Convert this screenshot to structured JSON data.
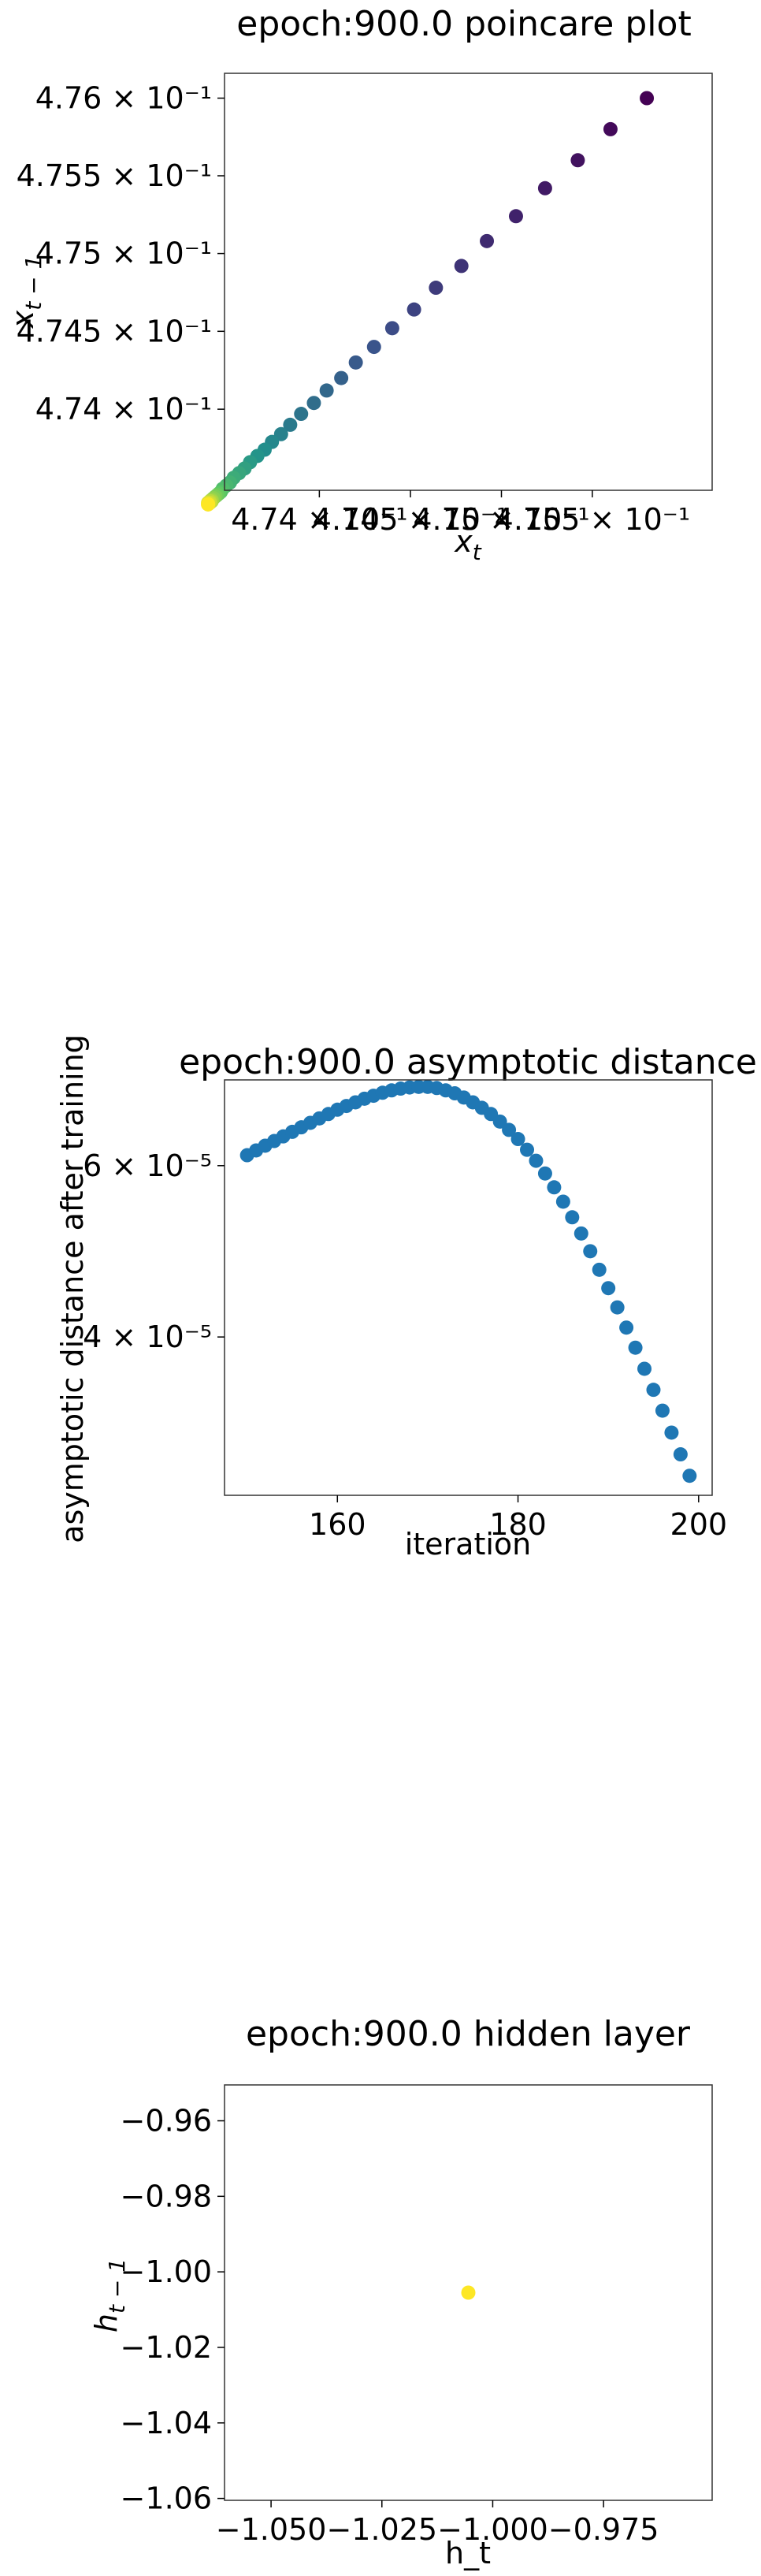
{
  "chart_data": [
    {
      "type": "scatter",
      "title": "epoch:900.0 poincare plot",
      "xlabel": "x",
      "xlabel_sub": "t",
      "ylabel": "x",
      "ylabel_sub": "t − 1",
      "xscale": "log",
      "yscale": "log",
      "xlim": [
        0.47348,
        0.47616
      ],
      "ylim": [
        0.47348,
        0.47616
      ],
      "xticks": [
        {
          "value": 0.474,
          "label": "4.74 × 10⁻¹"
        },
        {
          "value": 0.4745,
          "label": "4.745 × 10⁻¹"
        },
        {
          "value": 0.475,
          "label": "4.75 × 10⁻¹"
        },
        {
          "value": 0.4755,
          "label": "4.755 × 10⁻¹"
        }
      ],
      "yticks": [
        {
          "value": 0.474,
          "label": "4.74 × 10⁻¹"
        },
        {
          "value": 0.4745,
          "label": "4.745 × 10⁻¹"
        },
        {
          "value": 0.475,
          "label": "4.75 × 10⁻¹"
        },
        {
          "value": 0.4755,
          "label": "4.755 × 10⁻¹"
        },
        {
          "value": 0.476,
          "label": "4.76 × 10⁻¹"
        }
      ],
      "colormap": "viridis",
      "x": [
        0.4758,
        0.4756,
        0.47542,
        0.47524,
        0.47508,
        0.47492,
        0.47478,
        0.47464,
        0.47452,
        0.4744,
        0.4743,
        0.4742,
        0.47412,
        0.47404,
        0.47397,
        0.4739,
        0.47384,
        0.47379,
        0.47374,
        0.4737,
        0.47366,
        0.47362,
        0.47359,
        0.47356,
        0.47353,
        0.47351,
        0.47349,
        0.47347,
        0.47346,
        0.47345,
        0.47344,
        0.47343,
        0.47342,
        0.47341,
        0.47341,
        0.4734,
        0.4734,
        0.47339,
        0.47339,
        0.47339
      ],
      "y": [
        0.476,
        0.4758,
        0.4756,
        0.47542,
        0.47524,
        0.47508,
        0.47492,
        0.47478,
        0.47464,
        0.47452,
        0.4744,
        0.4743,
        0.4742,
        0.47412,
        0.47404,
        0.47397,
        0.4739,
        0.47384,
        0.47379,
        0.47374,
        0.4737,
        0.47366,
        0.47362,
        0.47359,
        0.47356,
        0.47353,
        0.47351,
        0.47349,
        0.47347,
        0.47346,
        0.47345,
        0.47344,
        0.47343,
        0.47342,
        0.47341,
        0.47341,
        0.4734,
        0.4734,
        0.47339,
        0.47339
      ]
    },
    {
      "type": "scatter",
      "title": "epoch:900.0 asymptotic distance",
      "xlabel": "iteration",
      "ylabel": "asymptotic distance after training",
      "yscale": "log",
      "xlim": [
        147.5,
        201.5
      ],
      "ylim": [
        2.75e-05,
        7.35e-05
      ],
      "color": "#1f77b4",
      "xticks": [
        {
          "value": 160,
          "label": "160"
        },
        {
          "value": 180,
          "label": "180"
        },
        {
          "value": 200,
          "label": "200"
        }
      ],
      "yticks": [
        {
          "value": 4e-05,
          "label": "4 × 10⁻⁵"
        },
        {
          "value": 6e-05,
          "label": "6 × 10⁻⁵"
        }
      ],
      "x": [
        150,
        151,
        152,
        153,
        154,
        155,
        156,
        157,
        158,
        159,
        160,
        161,
        162,
        163,
        164,
        165,
        166,
        167,
        168,
        169,
        170,
        171,
        172,
        173,
        174,
        175,
        176,
        177,
        178,
        179,
        180,
        181,
        182,
        183,
        184,
        185,
        186,
        187,
        188,
        189,
        190,
        191,
        192,
        193,
        194,
        195,
        196,
        197,
        198,
        199
      ],
      "y": [
        6.15e-05,
        6.22e-05,
        6.29e-05,
        6.36e-05,
        6.43e-05,
        6.5e-05,
        6.57e-05,
        6.64e-05,
        6.71e-05,
        6.78e-05,
        6.85e-05,
        6.91e-05,
        6.97e-05,
        7.03e-05,
        7.08e-05,
        7.13e-05,
        7.17e-05,
        7.2e-05,
        7.22e-05,
        7.23e-05,
        7.23e-05,
        7.21e-05,
        7.17e-05,
        7.12e-05,
        7.05e-05,
        6.97e-05,
        6.88e-05,
        6.78e-05,
        6.66e-05,
        6.53e-05,
        6.39e-05,
        6.23e-05,
        6.07e-05,
        5.89e-05,
        5.7e-05,
        5.51e-05,
        5.31e-05,
        5.11e-05,
        4.9e-05,
        4.69e-05,
        4.49e-05,
        4.29e-05,
        4.09e-05,
        3.9e-05,
        3.71e-05,
        3.53e-05,
        3.36e-05,
        3.19e-05,
        3.03e-05,
        2.88e-05
      ]
    },
    {
      "type": "scatter",
      "title": "epoch:900.0 hidden layer",
      "xlabel": "h_t",
      "ylabel": "h",
      "ylabel_sub": "t − 1",
      "xlim": [
        -1.0605,
        -0.9505
      ],
      "ylim": [
        -1.0605,
        -0.9505
      ],
      "color": "#fde725",
      "xticks": [
        {
          "value": -1.05,
          "label": "−1.050"
        },
        {
          "value": -1.025,
          "label": "−1.025"
        },
        {
          "value": -1.0,
          "label": "−1.000"
        },
        {
          "value": -0.975,
          "label": "−0.975"
        }
      ],
      "yticks": [
        {
          "value": -0.96,
          "label": "−0.96"
        },
        {
          "value": -0.98,
          "label": "−0.98"
        },
        {
          "value": -1.0,
          "label": "−1.00"
        },
        {
          "value": -1.02,
          "label": "−1.02"
        },
        {
          "value": -1.04,
          "label": "−1.04"
        },
        {
          "value": -1.06,
          "label": "−1.06"
        }
      ],
      "x": [
        -1.0055
      ],
      "y": [
        -1.0055
      ]
    }
  ]
}
